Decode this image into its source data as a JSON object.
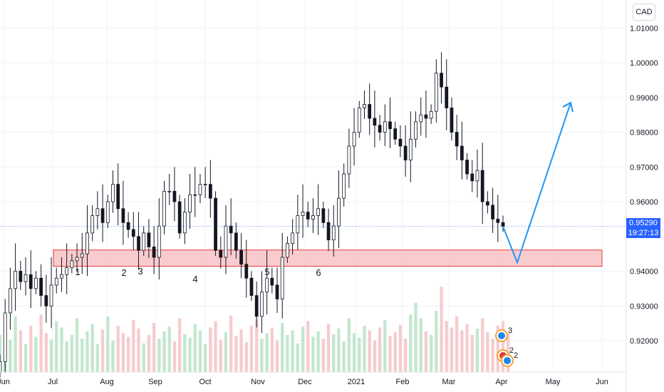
{
  "currency": "CAD",
  "price_label": "0.95290",
  "countdown_label": "19:27:13",
  "chart_data": {
    "type": "candlestick",
    "ylim": [
      0.912,
      1.015
    ],
    "y_ticks": [
      "1.01000",
      "1.00000",
      "0.99000",
      "0.98000",
      "0.97000",
      "0.96000",
      "0.94000",
      "0.93000",
      "0.92000"
    ],
    "y_tick_values": [
      1.01,
      1.0,
      0.99,
      0.98,
      0.97,
      0.96,
      0.94,
      0.93,
      0.92
    ],
    "x_ticks": [
      "Jun",
      "Jul",
      "Aug",
      "Sep",
      "Oct",
      "Nov",
      "Dec",
      "2021",
      "Feb",
      "Mar",
      "Apr",
      "May",
      "Jun"
    ],
    "last_price": 0.9529,
    "support_zone": [
      0.9414,
      0.9461
    ],
    "wave_labels": [
      "1",
      "2",
      "3",
      "4",
      "5",
      "6"
    ],
    "close_path": [
      0.914,
      0.928,
      0.935,
      0.94,
      0.937,
      0.939,
      0.935,
      0.938,
      0.933,
      0.93,
      0.936,
      0.938,
      0.939,
      0.941,
      0.943,
      0.944,
      0.945,
      0.951,
      0.956,
      0.958,
      0.954,
      0.96,
      0.965,
      0.958,
      0.954,
      0.952,
      0.95,
      0.946,
      0.951,
      0.947,
      0.944,
      0.953,
      0.963,
      0.963,
      0.96,
      0.951,
      0.957,
      0.962,
      0.962,
      0.965,
      0.965,
      0.961,
      0.946,
      0.944,
      0.953,
      0.951,
      0.946,
      0.942,
      0.938,
      0.933,
      0.927,
      0.934,
      0.938,
      0.936,
      0.932,
      0.944,
      0.948,
      0.951,
      0.956,
      0.957,
      0.955,
      0.956,
      0.958,
      0.954,
      0.949,
      0.953,
      0.961,
      0.968,
      0.976,
      0.98,
      0.987,
      0.988,
      0.984,
      0.982,
      0.98,
      0.983,
      0.981,
      0.978,
      0.976,
      0.972,
      0.978,
      0.983,
      0.985,
      0.984,
      0.986,
      0.997,
      0.993,
      0.987,
      0.98,
      0.976,
      0.972,
      0.968,
      0.966,
      0.969,
      0.96,
      0.959,
      0.955,
      0.954,
      0.9529
    ],
    "projection": [
      0.9529,
      0.9425,
      0.9885
    ],
    "volume_levels": [
      0.4,
      0.55,
      0.35,
      0.6,
      0.45,
      0.3,
      0.5,
      0.38,
      0.62,
      0.42,
      0.35,
      0.55,
      0.48,
      0.33,
      0.4,
      0.58,
      0.36,
      0.44,
      0.52,
      0.3,
      0.46,
      0.6,
      0.34,
      0.5,
      0.42,
      0.38,
      0.56,
      0.47,
      0.31,
      0.4,
      0.53,
      0.36,
      0.44,
      0.49,
      0.33,
      0.58,
      0.41,
      0.37,
      0.52,
      0.45,
      0.3,
      0.48,
      0.55,
      0.35,
      0.43,
      0.61,
      0.39,
      0.46,
      0.32,
      0.5,
      0.57,
      0.36,
      0.42,
      0.48,
      0.34,
      0.53,
      0.4,
      0.45,
      0.31,
      0.49,
      0.55,
      0.38,
      0.44,
      0.36,
      0.52,
      0.41,
      0.47,
      0.33,
      0.58,
      0.42,
      0.37,
      0.5,
      0.45,
      0.34,
      0.48,
      0.56,
      0.39,
      0.43,
      0.51,
      0.36,
      0.62,
      0.75,
      0.58,
      0.44,
      0.4,
      0.66,
      0.92,
      0.55,
      0.48,
      0.6,
      0.45,
      0.52,
      0.4,
      0.47,
      0.58,
      0.43,
      0.36,
      0.5,
      0.55,
      0.42
    ],
    "event_badges": [
      {
        "label": "3"
      },
      {
        "label": "2"
      },
      {
        "label": "2"
      }
    ],
    "colors": {
      "up": "#ffffff",
      "down": "#131722",
      "zone_fill": "#f7a8ad",
      "zone_stroke": "#e53935",
      "projection": "#2196f3",
      "price_line": "#2962ff"
    }
  }
}
